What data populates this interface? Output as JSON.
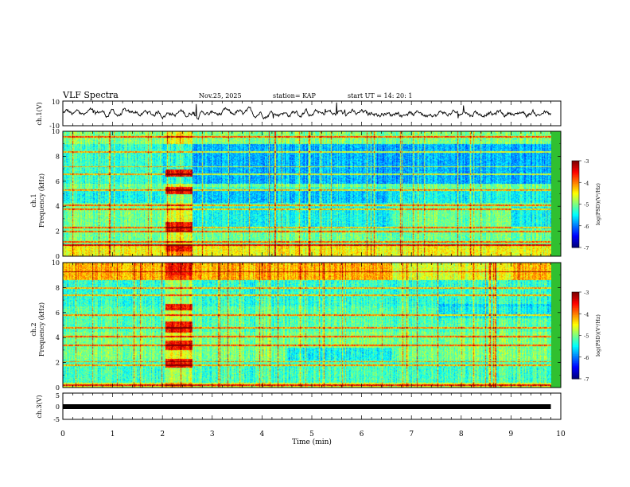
{
  "header": {
    "title": "VLF Spectra",
    "date": "Nov.25, 2025",
    "station": "station= KAP",
    "start_time": "start UT =  14: 20: 1"
  },
  "chart_data": [
    {
      "type": "line",
      "name": "ch1-waveform",
      "ylabel": "ch.1(V)",
      "ylim": [
        -10,
        10
      ],
      "y_ticks": [
        "10",
        "-10"
      ],
      "xlim": [
        0,
        9.8
      ],
      "description_values": "noisy waveform oscillating roughly between -3 and +3 V, occasional spikes to ~6 V"
    },
    {
      "type": "heatmap",
      "name": "ch1-spectrogram",
      "ylabel": "ch.1\nFrequency (kHz)",
      "ylabel_line1": "ch.1",
      "ylabel_line2": "Frequency (kHz)",
      "ylim": [
        0,
        10
      ],
      "y_ticks": [
        "0",
        "2",
        "4",
        "6",
        "8",
        "10"
      ],
      "xlim": [
        0,
        9.8
      ],
      "colorbar": {
        "label": "log(PSD)(V²/Hz)",
        "range": [
          -7,
          -3
        ],
        "ticks": [
          "-3",
          "-4",
          "-5",
          "-6",
          "-7"
        ]
      },
      "features": {
        "strong_burst_minutes": [
          2.05,
          2.6
        ],
        "quiet_band_kHz": [
          5.8,
          9
        ]
      }
    },
    {
      "type": "heatmap",
      "name": "ch2-spectrogram",
      "ylabel_line1": "ch.2",
      "ylabel_line2": "Frequency (kHz)",
      "ylim": [
        0,
        10
      ],
      "y_ticks": [
        "0",
        "2",
        "4",
        "6",
        "8",
        "10"
      ],
      "xlim": [
        0,
        9.8
      ],
      "colorbar": {
        "label": "log(PSD)(V²/Hz)",
        "range": [
          -7,
          -3
        ],
        "ticks": [
          "-3",
          "-4",
          "-5",
          "-6",
          "-7"
        ]
      },
      "features": {
        "strong_burst_minutes": [
          2.05,
          2.6
        ],
        "hot_band_kHz": [
          8.5,
          10
        ]
      }
    },
    {
      "type": "line",
      "name": "ch3-signal",
      "ylabel": "ch.3(V)",
      "ylim": [
        -5,
        5
      ],
      "y_ticks": [
        "5",
        "0",
        "-5"
      ],
      "xlim": [
        0,
        9.8
      ],
      "level": 0
    }
  ],
  "x_axis": {
    "label": "Time  (min)",
    "range": [
      0,
      10
    ],
    "ticks": [
      "0",
      "1",
      "2",
      "3",
      "4",
      "5",
      "6",
      "7",
      "8",
      "9",
      "10"
    ]
  }
}
